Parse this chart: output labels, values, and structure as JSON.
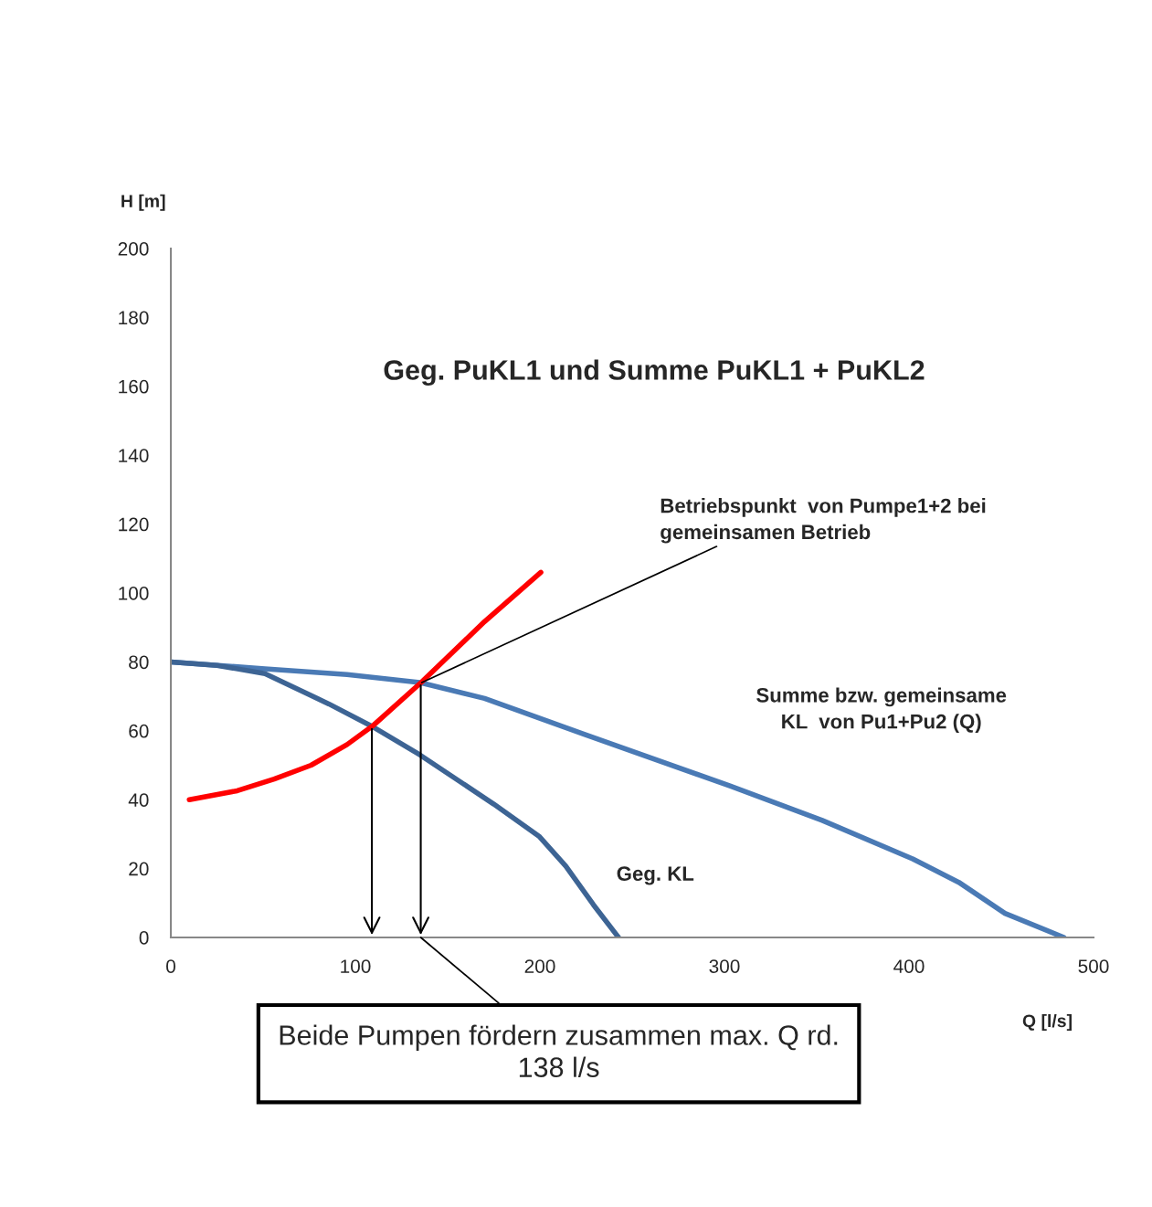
{
  "chart_data": {
    "type": "line",
    "title": "Geg. PuKL1 und Summe PuKL1 + PuKL2",
    "xlabel": "Q [l/s]",
    "ylabel": "H [m]",
    "xlim": [
      0,
      500
    ],
    "xticks": [
      0,
      100,
      200,
      300,
      400,
      500
    ],
    "ylim": [
      0,
      200
    ],
    "yticks": [
      0,
      20,
      40,
      60,
      80,
      100,
      120,
      140,
      160,
      180,
      200
    ],
    "grid": false,
    "legend": false,
    "marker": "none",
    "line_style": "solid",
    "series": [
      {
        "name": "Summe bzw. gemeinsame\nKL  von Pu1+Pu2 (Q)",
        "color": "#4a7ab5",
        "x": [
          0,
          51,
          95.5,
          135,
          170,
          224,
          303,
          353,
          402,
          427,
          452,
          484
        ],
        "values": [
          80,
          78,
          76.3,
          74,
          69.4,
          59,
          44,
          34,
          22.8,
          16,
          7,
          0
        ]
      },
      {
        "name": "Geg. KL",
        "color": "#3d6494",
        "x": [
          0,
          25,
          51,
          85.6,
          110,
          135,
          175,
          199.5,
          214,
          229,
          242.6
        ],
        "values": [
          80,
          79,
          76.6,
          67.8,
          61,
          53,
          38.7,
          29.4,
          20.7,
          9.5,
          0
        ]
      },
      {
        "color": "#ff0000",
        "x": [
          10,
          36,
          56,
          76,
          95.5,
          110,
          136,
          170,
          200.5
        ],
        "values": [
          40,
          42.6,
          46,
          50,
          56,
          61.7,
          74.2,
          91.7,
          106
        ]
      }
    ],
    "annotations": [
      {
        "text": "Betriebspunkt  von Pumpe1+2 bei\ngemeinsamen Betrieb",
        "x": 136,
        "y": 74
      },
      "Beide Pumpen fördern zusammen max. Q rd.\n138 l/s"
    ]
  }
}
